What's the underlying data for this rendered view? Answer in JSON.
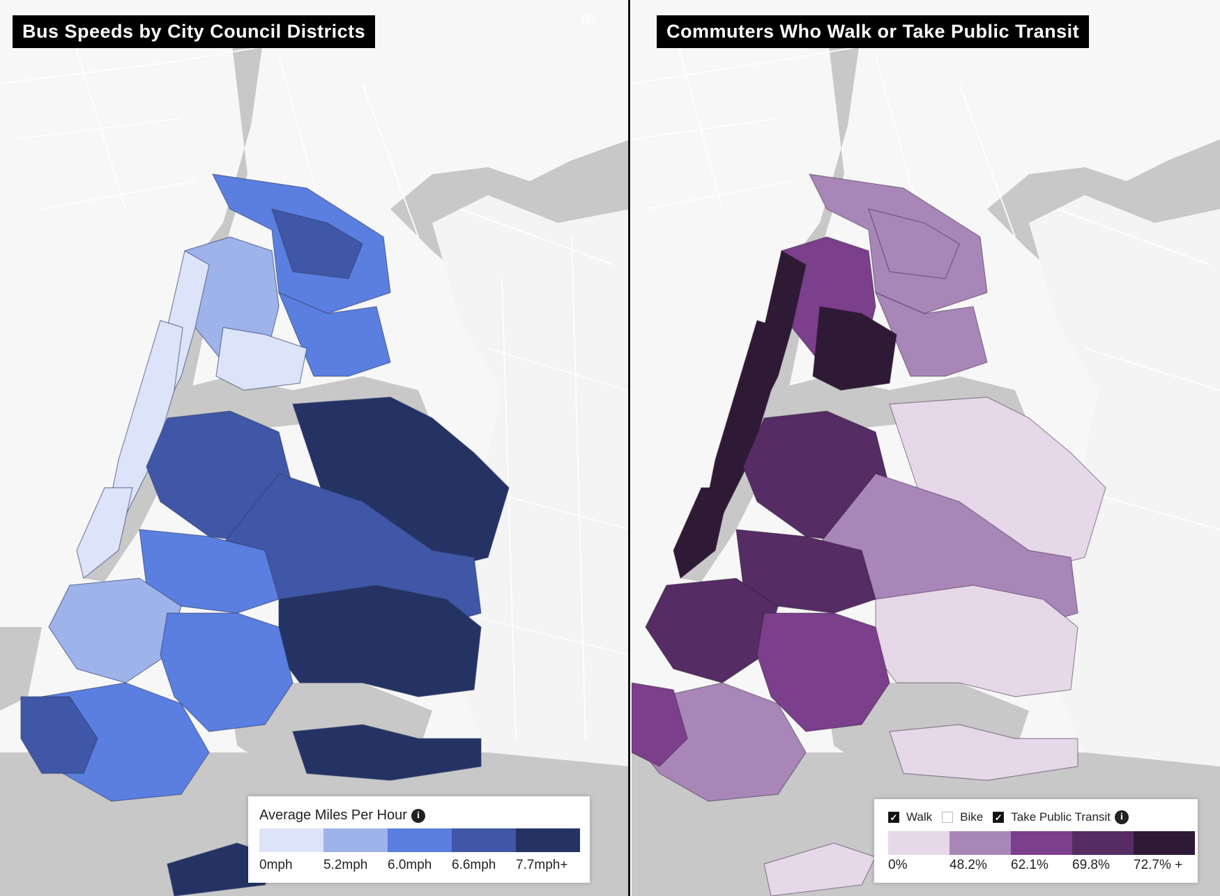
{
  "left_map": {
    "title": "Bus Speeds by City Council Districts",
    "logo_text": "m",
    "legend": {
      "title": "Average Miles Per Hour",
      "info_icon": "info-icon",
      "bins": [
        {
          "label": "0mph",
          "color": "#dde3f8"
        },
        {
          "label": "5.2mph",
          "color": "#9eb3ea"
        },
        {
          "label": "6.0mph",
          "color": "#5a7fe0"
        },
        {
          "label": "6.6mph",
          "color": "#3f57a6"
        },
        {
          "label": "7.7mph+",
          "color": "#253364"
        }
      ]
    }
  },
  "right_map": {
    "title": "Commuters Who Walk or Take Public Transit",
    "legend": {
      "filters": [
        {
          "label": "Walk",
          "checked": true
        },
        {
          "label": "Bike",
          "checked": false
        },
        {
          "label": "Take Public Transit",
          "checked": true
        }
      ],
      "info_icon": "info-icon",
      "bins": [
        {
          "label": "0%",
          "color": "#e6d7e9"
        },
        {
          "label": "48.2%",
          "color": "#a886b8"
        },
        {
          "label": "62.1%",
          "color": "#7b3f8c"
        },
        {
          "label": "69.8%",
          "color": "#552c63"
        },
        {
          "label": "72.7% +",
          "color": "#2f1a35"
        }
      ]
    }
  },
  "map_colors": {
    "water": "#c8c8c8",
    "land": "#f7f7f7",
    "roads": "#ffffff"
  }
}
